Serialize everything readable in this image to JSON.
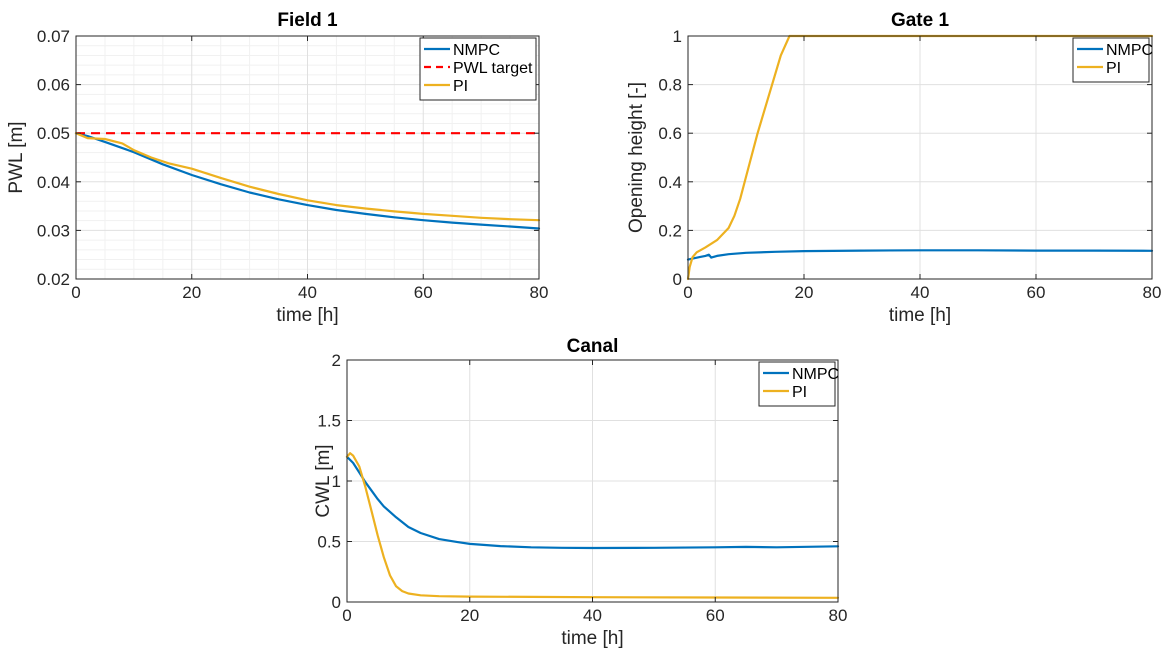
{
  "chart_data": [
    {
      "type": "line",
      "title": "Field 1",
      "xlabel": "time [h]",
      "ylabel": "PWL [m]",
      "xlim": [
        0,
        80
      ],
      "ylim": [
        0.02,
        0.07
      ],
      "xticks": [
        0,
        20,
        40,
        60,
        80
      ],
      "yticks": [
        0.02,
        0.03,
        0.04,
        0.05,
        0.06,
        0.07
      ],
      "xtick_labels": [
        "0",
        "20",
        "40",
        "60",
        "80"
      ],
      "ytick_labels": [
        "0.02",
        "0.03",
        "0.04",
        "0.05",
        "0.06",
        "0.07"
      ],
      "grid": true,
      "minor_grid": true,
      "legend_position": "top-right",
      "series": [
        {
          "name": "NMPC",
          "color": "#0072BD",
          "style": "solid",
          "x": [
            0,
            2,
            5,
            10,
            15,
            20,
            25,
            30,
            35,
            40,
            45,
            50,
            55,
            60,
            65,
            70,
            75,
            80
          ],
          "y": [
            0.05,
            0.0494,
            0.0482,
            0.0461,
            0.0436,
            0.0414,
            0.0395,
            0.0378,
            0.0364,
            0.0352,
            0.0342,
            0.0334,
            0.0327,
            0.0321,
            0.0316,
            0.0312,
            0.0308,
            0.0304
          ]
        },
        {
          "name": "PWL target",
          "color": "#FF0000",
          "style": "dashed",
          "x": [
            0,
            80
          ],
          "y": [
            0.05,
            0.05
          ]
        },
        {
          "name": "PI",
          "color": "#EDB120",
          "style": "solid",
          "x": [
            0,
            2,
            5,
            8,
            10,
            13,
            16,
            20,
            25,
            30,
            35,
            40,
            45,
            50,
            55,
            60,
            65,
            70,
            75,
            80
          ],
          "y": [
            0.05,
            0.049,
            0.0488,
            0.0479,
            0.0465,
            0.045,
            0.0438,
            0.0427,
            0.0408,
            0.039,
            0.0375,
            0.0362,
            0.0352,
            0.0345,
            0.0339,
            0.0334,
            0.033,
            0.0326,
            0.0323,
            0.0321
          ]
        }
      ]
    },
    {
      "type": "line",
      "title": "Gate 1",
      "xlabel": "time [h]",
      "ylabel": "Opening height [-]",
      "xlim": [
        0,
        80
      ],
      "ylim": [
        0,
        1
      ],
      "xticks": [
        0,
        20,
        40,
        60,
        80
      ],
      "yticks": [
        0,
        0.2,
        0.4,
        0.6,
        0.8,
        1
      ],
      "xtick_labels": [
        "0",
        "20",
        "40",
        "60",
        "80"
      ],
      "ytick_labels": [
        "0",
        "0.2",
        "0.4",
        "0.6",
        "0.8",
        "1"
      ],
      "grid": true,
      "minor_grid": false,
      "legend_position": "top-right",
      "series": [
        {
          "name": "NMPC",
          "color": "#0072BD",
          "style": "solid",
          "x": [
            0,
            1,
            2,
            3,
            3.6,
            4,
            5,
            7,
            10,
            15,
            20,
            30,
            40,
            50,
            60,
            70,
            80
          ],
          "y": [
            0.08,
            0.085,
            0.09,
            0.095,
            0.1,
            0.088,
            0.095,
            0.102,
            0.108,
            0.112,
            0.115,
            0.117,
            0.118,
            0.118,
            0.117,
            0.117,
            0.116
          ]
        },
        {
          "name": "PI",
          "color": "#EDB120",
          "style": "solid",
          "x": [
            0,
            0.3,
            0.8,
            1.5,
            3,
            5,
            7,
            8,
            9,
            10,
            12,
            14,
            16,
            17.5,
            20,
            40,
            60,
            80
          ],
          "y": [
            0,
            0.05,
            0.09,
            0.11,
            0.13,
            0.16,
            0.21,
            0.26,
            0.33,
            0.42,
            0.6,
            0.76,
            0.92,
            1.0,
            1.0,
            1.0,
            1.0,
            1.0
          ]
        }
      ]
    },
    {
      "type": "line",
      "title": "Canal",
      "xlabel": "time [h]",
      "ylabel": "CWL [m]",
      "xlim": [
        0,
        80
      ],
      "ylim": [
        0,
        2
      ],
      "xticks": [
        0,
        20,
        40,
        60,
        80
      ],
      "yticks": [
        0,
        0.5,
        1,
        1.5,
        2
      ],
      "xtick_labels": [
        "0",
        "20",
        "40",
        "60",
        "80"
      ],
      "ytick_labels": [
        "0",
        "0.5",
        "1",
        "1.5",
        "2"
      ],
      "grid": true,
      "minor_grid": false,
      "legend_position": "top-right",
      "series": [
        {
          "name": "NMPC",
          "color": "#0072BD",
          "style": "solid",
          "x": [
            0,
            1,
            2,
            3,
            4,
            5,
            6,
            8,
            10,
            12,
            15,
            18,
            20,
            25,
            30,
            35,
            40,
            50,
            60,
            65,
            70,
            80
          ],
          "y": [
            1.2,
            1.15,
            1.07,
            0.99,
            0.92,
            0.85,
            0.79,
            0.7,
            0.62,
            0.57,
            0.52,
            0.495,
            0.48,
            0.462,
            0.452,
            0.448,
            0.446,
            0.448,
            0.452,
            0.455,
            0.452,
            0.46
          ]
        },
        {
          "name": "PI",
          "color": "#EDB120",
          "style": "solid",
          "x": [
            0,
            0.5,
            1,
            2,
            3,
            4,
            5,
            6,
            7,
            8,
            9,
            10,
            12,
            15,
            20,
            30,
            40,
            60,
            80
          ],
          "y": [
            1.2,
            1.23,
            1.21,
            1.12,
            0.95,
            0.75,
            0.55,
            0.37,
            0.22,
            0.13,
            0.09,
            0.07,
            0.055,
            0.048,
            0.045,
            0.042,
            0.04,
            0.037,
            0.035
          ]
        }
      ]
    }
  ]
}
